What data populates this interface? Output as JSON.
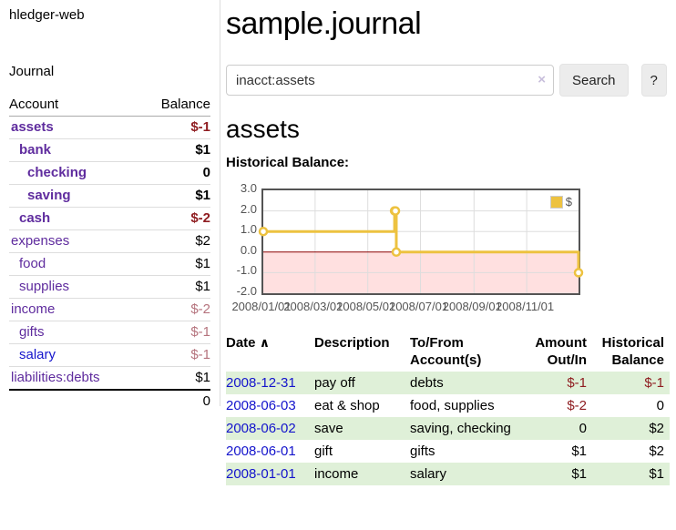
{
  "app": {
    "title": "hledger-web"
  },
  "colors": {
    "link_purple": "#5f2c9e",
    "link_blue": "#1414cc",
    "negative_strong": "#8f1d21",
    "negative_soft": "#b5737d",
    "row_shade_green": "#dff0d8",
    "chart_line": "#edc240",
    "chart_zero_line": "#8b0000",
    "chart_negative_fill": "rgba(255,0,0,0.12)",
    "chart_border": "#545454",
    "chart_grid": "#dddddd"
  },
  "sidebar": {
    "journal_link": "Journal",
    "accounts": {
      "headers": {
        "account": "Account",
        "balance": "Balance"
      },
      "rows": [
        {
          "name": "assets",
          "depth": 0,
          "balance": "$-1",
          "bold": true,
          "balance_tone": "neg-strong"
        },
        {
          "name": "bank",
          "depth": 1,
          "balance": "$1",
          "bold": true,
          "balance_tone": "normal"
        },
        {
          "name": "checking",
          "depth": 2,
          "balance": "0",
          "bold": true,
          "balance_tone": "normal"
        },
        {
          "name": "saving",
          "depth": 2,
          "balance": "$1",
          "bold": true,
          "balance_tone": "normal"
        },
        {
          "name": "cash",
          "depth": 1,
          "balance": "$-2",
          "bold": true,
          "balance_tone": "neg-strong"
        },
        {
          "name": "expenses",
          "depth": 0,
          "balance": "$2",
          "bold": false,
          "balance_tone": "normal"
        },
        {
          "name": "food",
          "depth": 1,
          "balance": "$1",
          "bold": false,
          "balance_tone": "normal"
        },
        {
          "name": "supplies",
          "depth": 1,
          "balance": "$1",
          "bold": false,
          "balance_tone": "normal"
        },
        {
          "name": "income",
          "depth": 0,
          "balance": "$-2",
          "bold": false,
          "balance_tone": "neg-soft"
        },
        {
          "name": "gifts",
          "depth": 1,
          "balance": "$-1",
          "bold": false,
          "balance_tone": "neg-soft"
        },
        {
          "name": "salary",
          "depth": 1,
          "balance": "$-1",
          "bold": false,
          "balance_tone": "neg-soft",
          "link_color": "blue"
        },
        {
          "name": "liabilities:debts",
          "depth": 0,
          "balance": "$1",
          "bold": false,
          "balance_tone": "normal"
        }
      ],
      "total": "0"
    }
  },
  "main": {
    "title": "sample.journal",
    "search": {
      "value": "inacct:assets",
      "clear_icon": "×",
      "button_label": "Search",
      "help_label": "?"
    },
    "account_heading": "assets",
    "register": {
      "headers": {
        "date": "Date",
        "sort_icon": "∧",
        "description": "Description",
        "accounts": "To/From Account(s)",
        "amount": "Amount Out/In",
        "balance": "Historical Balance"
      },
      "rows": [
        {
          "date": "2008-12-31",
          "description": "pay off",
          "accounts": "debts",
          "amount": "$-1",
          "amount_negative": true,
          "balance": "$-1",
          "balance_negative": true,
          "shaded": true
        },
        {
          "date": "2008-06-03",
          "description": "eat & shop",
          "accounts": "food, supplies",
          "amount": "$-2",
          "amount_negative": true,
          "balance": "0",
          "balance_negative": false,
          "shaded": false
        },
        {
          "date": "2008-06-02",
          "description": "save",
          "accounts": "saving, checking",
          "amount": "0",
          "amount_negative": false,
          "balance": "$2",
          "balance_negative": false,
          "shaded": true
        },
        {
          "date": "2008-06-01",
          "description": "gift",
          "accounts": "gifts",
          "amount": "$1",
          "amount_negative": false,
          "balance": "$2",
          "balance_negative": false,
          "shaded": false
        },
        {
          "date": "2008-01-01",
          "description": "income",
          "accounts": "salary",
          "amount": "$1",
          "amount_negative": false,
          "balance": "$1",
          "balance_negative": false,
          "shaded": true
        }
      ]
    }
  },
  "chart_data": {
    "type": "line",
    "title": "Historical Balance:",
    "style": "steps",
    "series": [
      {
        "name": "$",
        "points": [
          {
            "date": "2008-01-01",
            "day": 0,
            "value": 1
          },
          {
            "date": "2008-06-01",
            "day": 152,
            "value": 2
          },
          {
            "date": "2008-06-02",
            "day": 153,
            "value": 2
          },
          {
            "date": "2008-06-03",
            "day": 154,
            "value": 0
          },
          {
            "date": "2008-12-31",
            "day": 365,
            "value": -1
          }
        ]
      }
    ],
    "x_ticks": [
      {
        "label": "2008/01/01",
        "day": 0
      },
      {
        "label": "2008/03/01",
        "day": 60
      },
      {
        "label": "2008/05/01",
        "day": 121
      },
      {
        "label": "2008/07/01",
        "day": 182
      },
      {
        "label": "2008/09/01",
        "day": 244
      },
      {
        "label": "2008/11/01",
        "day": 305
      }
    ],
    "y_ticks": [
      {
        "label": "3.0",
        "value": 3
      },
      {
        "label": "2.0",
        "value": 2
      },
      {
        "label": "1.0",
        "value": 1
      },
      {
        "label": "0.0",
        "value": 0
      },
      {
        "label": "-1.0",
        "value": -1
      },
      {
        "label": "-2.0",
        "value": -2
      }
    ],
    "xlim_days": [
      0,
      365
    ],
    "ylim": [
      -2,
      3
    ],
    "grid": true,
    "negative_region_shaded": true,
    "legend": {
      "position": "top-right",
      "entries": [
        "$"
      ]
    }
  }
}
